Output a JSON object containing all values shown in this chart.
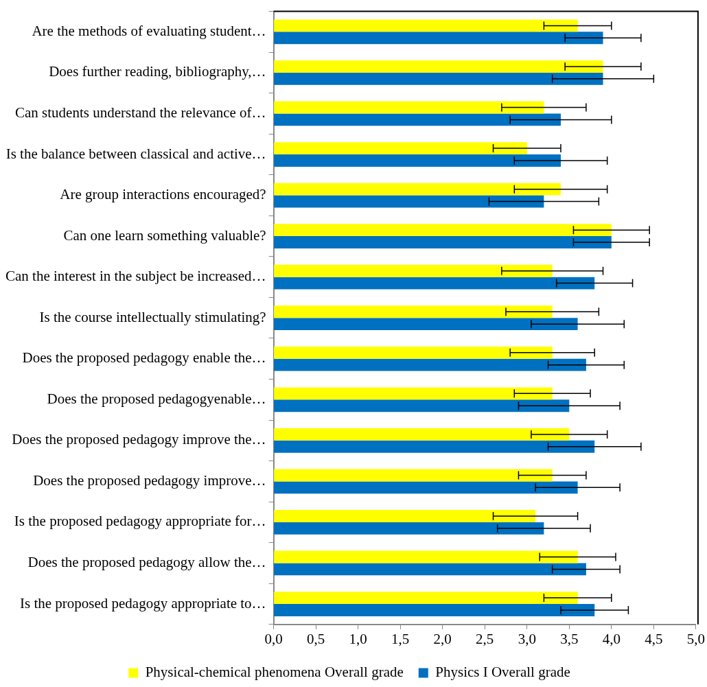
{
  "chart_data": {
    "type": "bar",
    "orientation": "horizontal",
    "categories": [
      "Are the methods of evaluating student…",
      "Does further reading, bibliography,…",
      "Can students understand the relevance of…",
      "Is the balance between classical and active…",
      "Are group interactions encouraged?",
      "Can one learn something valuable?",
      "Can the interest in the subject be increased…",
      "Is the course intellectually stimulating?",
      "Does the proposed pedagogy enable the…",
      "Does the proposed pedagogyenable…",
      "Does the proposed pedagogy improve the…",
      "Does the proposed pedagogy improve…",
      "Is the proposed pedagogy appropriate for…",
      "Does the proposed pedagogy allow the…",
      "Is the proposed pedagogy appropriate to…"
    ],
    "series": [
      {
        "name": "Physical-chemical phenomena Overall grade",
        "color": "#ffff00",
        "values": [
          3.6,
          3.9,
          3.2,
          3.0,
          3.4,
          4.0,
          3.3,
          3.3,
          3.3,
          3.3,
          3.5,
          3.3,
          3.1,
          3.6,
          3.6
        ],
        "errors": [
          0.4,
          0.45,
          0.5,
          0.4,
          0.55,
          0.45,
          0.6,
          0.55,
          0.5,
          0.45,
          0.45,
          0.4,
          0.5,
          0.45,
          0.4
        ]
      },
      {
        "name": "Physics I Overall grade",
        "color": "#0070c0",
        "values": [
          3.9,
          3.9,
          3.4,
          3.4,
          3.2,
          4.0,
          3.8,
          3.6,
          3.7,
          3.5,
          3.8,
          3.6,
          3.2,
          3.7,
          3.8
        ],
        "errors": [
          0.45,
          0.6,
          0.6,
          0.55,
          0.65,
          0.45,
          0.45,
          0.55,
          0.45,
          0.6,
          0.55,
          0.5,
          0.55,
          0.4,
          0.4
        ]
      }
    ],
    "xlim": [
      0,
      5
    ],
    "xticks": [
      {
        "value": 0,
        "label": "0,0"
      },
      {
        "value": 0.5,
        "label": "0,5"
      },
      {
        "value": 1,
        "label": "1,0"
      },
      {
        "value": 1.5,
        "label": "1,5"
      },
      {
        "value": 2,
        "label": "2,0"
      },
      {
        "value": 2.5,
        "label": "2,5"
      },
      {
        "value": 3,
        "label": "3,0"
      },
      {
        "value": 3.5,
        "label": "3,5"
      },
      {
        "value": 4,
        "label": "4,0"
      },
      {
        "value": 4.5,
        "label": "4,5"
      },
      {
        "value": 5,
        "label": "5,0"
      }
    ],
    "grid": false,
    "legend": "bottom"
  }
}
